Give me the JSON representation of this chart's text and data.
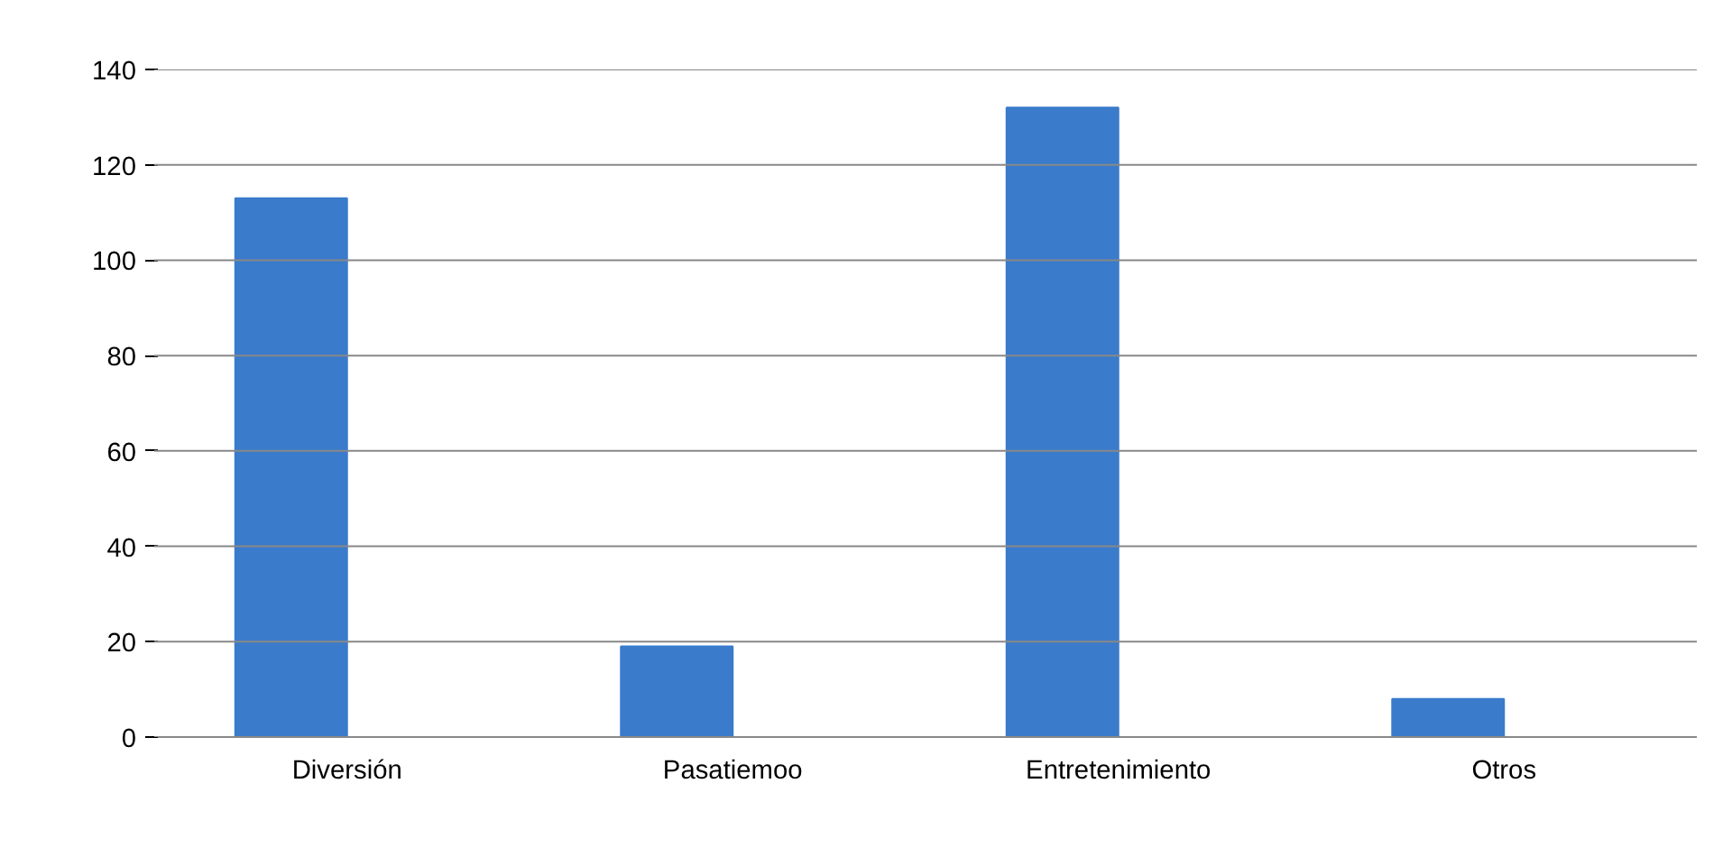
{
  "chart_data": {
    "type": "bar",
    "categories": [
      "Diversión",
      "Pasatiemoo",
      "Entretenimiento",
      "Otros"
    ],
    "series": [
      {
        "color": "#3a7bcb",
        "values": [
          113,
          19,
          132,
          8
        ]
      },
      {
        "color": "#c0504d",
        "values": [
          0,
          0,
          0,
          0
        ]
      }
    ],
    "ylim": [
      0,
      140
    ],
    "yticks": [
      0,
      20,
      40,
      60,
      80,
      100,
      120,
      140
    ],
    "grid": "y"
  }
}
